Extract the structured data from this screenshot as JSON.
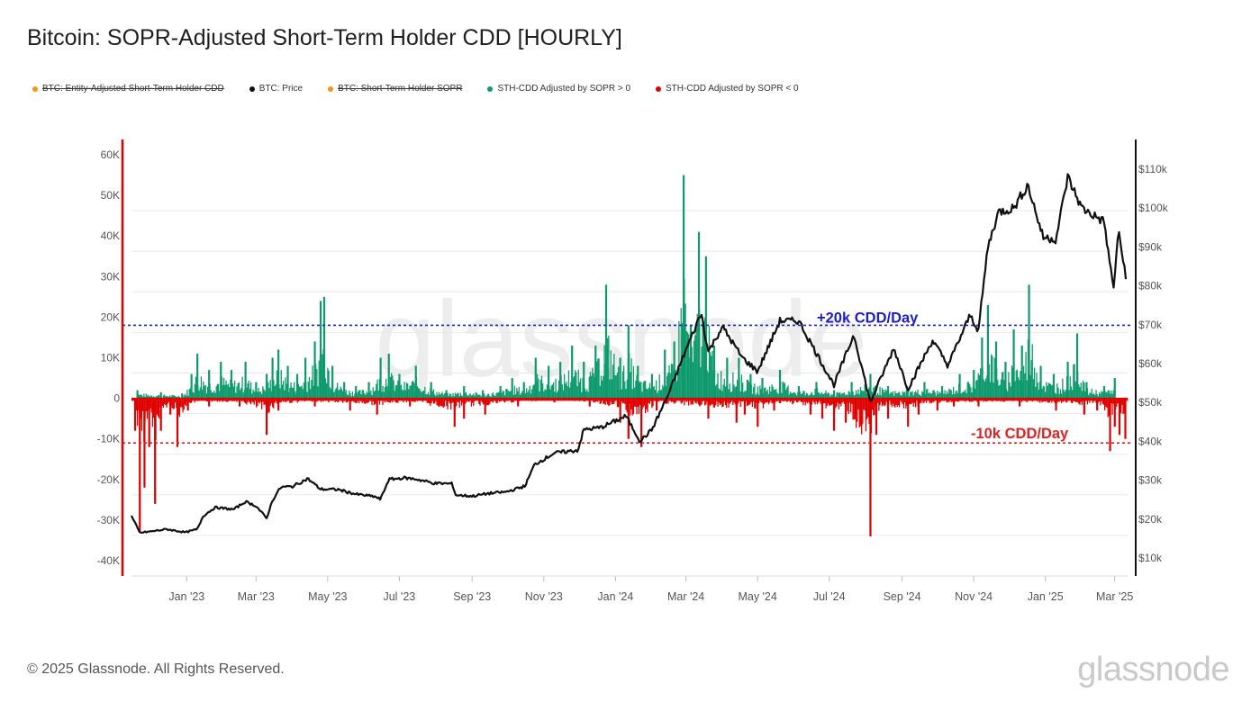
{
  "title": "Bitcoin: SOPR-Adjusted Short-Term Holder CDD [HOURLY]",
  "legend": [
    {
      "label": "BTC: Entity-Adjusted Short-Term Holder CDD",
      "color": "#f7931a",
      "struck": true
    },
    {
      "label": "BTC: Price",
      "color": "#111111",
      "struck": false
    },
    {
      "label": "BTC: Short-Term Holder SOPR",
      "color": "#f7931a",
      "struck": true
    },
    {
      "label": "STH-CDD Adjusted by SOPR > 0",
      "color": "#0e9a6c",
      "struck": false
    },
    {
      "label": "STH-CDD Adjusted by SOPR < 0",
      "color": "#e00000",
      "struck": false
    }
  ],
  "footer": "© 2025 Glassnode. All Rights Reserved.",
  "brand": "glassnode",
  "watermark": "glassnode",
  "chart_data": {
    "type": "bar",
    "x_range": [
      "2022-11-15",
      "2025-03-12"
    ],
    "x_ticks": [
      "Jan '23",
      "Mar '23",
      "May '23",
      "Jul '23",
      "Sep '23",
      "Nov '23",
      "Jan '24",
      "Mar '24",
      "May '24",
      "Jul '24",
      "Sep '24",
      "Nov '24",
      "Jan '25",
      "Mar '25"
    ],
    "y_left": {
      "ticks": [
        "60K",
        "50K",
        "40K",
        "30K",
        "20K",
        "10K",
        "0",
        "-10K",
        "-20K",
        "-30K",
        "-40K"
      ],
      "range": [
        -40000,
        60000
      ]
    },
    "y_right": {
      "ticks": [
        "$110k",
        "$100k",
        "$90k",
        "$80k",
        "$70k",
        "$60k",
        "$50k",
        "$40k",
        "$30k",
        "$20k",
        "$10k"
      ],
      "range": [
        10000,
        110000
      ]
    },
    "annotations": [
      {
        "text": "+20k CDD/Day",
        "y": 18000,
        "color": "#1f1fbf"
      },
      {
        "text": "-10k CDD/Day",
        "y": -11000,
        "color": "#e02020"
      }
    ],
    "series": [
      {
        "name": "STH-CDD Adjusted by SOPR > 0",
        "color": "#0e9a6c",
        "points": [
          [
            "2022-11-20",
            2000
          ],
          [
            "2022-12-10",
            1500
          ],
          [
            "2022-12-28",
            1200
          ],
          [
            "2023-01-05",
            6000
          ],
          [
            "2023-01-10",
            11000
          ],
          [
            "2023-01-20",
            7000
          ],
          [
            "2023-01-30",
            9000
          ],
          [
            "2023-02-08",
            7000
          ],
          [
            "2023-02-20",
            9000
          ],
          [
            "2023-03-01",
            4000
          ],
          [
            "2023-03-10",
            6000
          ],
          [
            "2023-03-15",
            10000
          ],
          [
            "2023-03-20",
            12000
          ],
          [
            "2023-03-28",
            8000
          ],
          [
            "2023-04-05",
            6000
          ],
          [
            "2023-04-12",
            10000
          ],
          [
            "2023-04-20",
            14000
          ],
          [
            "2023-04-25",
            24000
          ],
          [
            "2023-04-28",
            25000
          ],
          [
            "2023-05-05",
            8000
          ],
          [
            "2023-05-15",
            4000
          ],
          [
            "2023-05-25",
            3000
          ],
          [
            "2023-06-05",
            4000
          ],
          [
            "2023-06-15",
            10000
          ],
          [
            "2023-06-22",
            11000
          ],
          [
            "2023-07-01",
            6000
          ],
          [
            "2023-07-15",
            8000
          ],
          [
            "2023-07-28",
            4000
          ],
          [
            "2023-08-10",
            2000
          ],
          [
            "2023-08-25",
            3000
          ],
          [
            "2023-09-10",
            2000
          ],
          [
            "2023-09-25",
            3000
          ],
          [
            "2023-10-05",
            5000
          ],
          [
            "2023-10-15",
            4000
          ],
          [
            "2023-10-25",
            10000
          ],
          [
            "2023-11-05",
            8000
          ],
          [
            "2023-11-15",
            9000
          ],
          [
            "2023-11-25",
            13000
          ],
          [
            "2023-12-05",
            9000
          ],
          [
            "2023-12-15",
            13000
          ],
          [
            "2023-12-24",
            28000
          ],
          [
            "2024-01-05",
            10000
          ],
          [
            "2024-01-12",
            18000
          ],
          [
            "2024-01-20",
            8000
          ],
          [
            "2024-02-01",
            6000
          ],
          [
            "2024-02-12",
            12000
          ],
          [
            "2024-02-20",
            14000
          ],
          [
            "2024-02-28",
            55000
          ],
          [
            "2024-03-05",
            18000
          ],
          [
            "2024-03-12",
            41000
          ],
          [
            "2024-03-18",
            35000
          ],
          [
            "2024-03-25",
            13000
          ],
          [
            "2024-04-05",
            10000
          ],
          [
            "2024-04-15",
            10000
          ],
          [
            "2024-04-25",
            6000
          ],
          [
            "2024-05-05",
            5000
          ],
          [
            "2024-05-20",
            7000
          ],
          [
            "2024-06-05",
            3000
          ],
          [
            "2024-06-20",
            4000
          ],
          [
            "2024-07-05",
            2000
          ],
          [
            "2024-07-20",
            4000
          ],
          [
            "2024-08-05",
            6000
          ],
          [
            "2024-08-20",
            3000
          ],
          [
            "2024-09-05",
            3000
          ],
          [
            "2024-09-20",
            4000
          ],
          [
            "2024-10-05",
            3000
          ],
          [
            "2024-10-20",
            6000
          ],
          [
            "2024-11-01",
            7000
          ],
          [
            "2024-11-08",
            15000
          ],
          [
            "2024-11-13",
            23000
          ],
          [
            "2024-11-20",
            14000
          ],
          [
            "2024-11-28",
            9000
          ],
          [
            "2024-12-05",
            17000
          ],
          [
            "2024-12-12",
            13000
          ],
          [
            "2024-12-18",
            28000
          ],
          [
            "2024-12-28",
            8000
          ],
          [
            "2025-01-08",
            6000
          ],
          [
            "2025-01-20",
            9000
          ],
          [
            "2025-01-28",
            16000
          ],
          [
            "2025-02-05",
            4000
          ],
          [
            "2025-02-20",
            3000
          ],
          [
            "2025-03-01",
            5000
          ]
        ]
      },
      {
        "name": "STH-CDD Adjusted by SOPR < 0",
        "color": "#e00000",
        "points": [
          [
            "2022-11-18",
            -8000
          ],
          [
            "2022-11-22",
            -33000
          ],
          [
            "2022-11-26",
            -22000
          ],
          [
            "2022-11-30",
            -12000
          ],
          [
            "2022-12-05",
            -26000
          ],
          [
            "2022-12-10",
            -8000
          ],
          [
            "2022-12-18",
            -4000
          ],
          [
            "2022-12-24",
            -12000
          ],
          [
            "2023-01-02",
            -3000
          ],
          [
            "2023-01-20",
            -2000
          ],
          [
            "2023-02-15",
            -2000
          ],
          [
            "2023-03-10",
            -9000
          ],
          [
            "2023-03-20",
            -3000
          ],
          [
            "2023-04-20",
            -2000
          ],
          [
            "2023-05-20",
            -3000
          ],
          [
            "2023-06-12",
            -4000
          ],
          [
            "2023-07-10",
            -2000
          ],
          [
            "2023-08-17",
            -7000
          ],
          [
            "2023-08-25",
            -5000
          ],
          [
            "2023-09-12",
            -4000
          ],
          [
            "2023-10-10",
            -2000
          ],
          [
            "2023-11-10",
            -1000
          ],
          [
            "2023-12-10",
            -2000
          ],
          [
            "2024-01-05",
            -6000
          ],
          [
            "2024-01-12",
            -10000
          ],
          [
            "2024-01-23",
            -12000
          ],
          [
            "2024-02-05",
            -3000
          ],
          [
            "2024-03-20",
            -5000
          ],
          [
            "2024-04-13",
            -6000
          ],
          [
            "2024-04-20",
            -4000
          ],
          [
            "2024-05-01",
            -7000
          ],
          [
            "2024-05-15",
            -3000
          ],
          [
            "2024-06-15",
            -4000
          ],
          [
            "2024-06-25",
            -5000
          ],
          [
            "2024-07-05",
            -8000
          ],
          [
            "2024-07-15",
            -6000
          ],
          [
            "2024-08-05",
            -34000
          ],
          [
            "2024-08-10",
            -9000
          ],
          [
            "2024-08-20",
            -5000
          ],
          [
            "2024-09-06",
            -7000
          ],
          [
            "2024-09-15",
            -4000
          ],
          [
            "2024-10-01",
            -3000
          ],
          [
            "2024-10-15",
            -2000
          ],
          [
            "2024-11-05",
            -2000
          ],
          [
            "2024-12-10",
            -2000
          ],
          [
            "2025-01-10",
            -3000
          ],
          [
            "2025-02-03",
            -4000
          ],
          [
            "2025-02-14",
            -3000
          ],
          [
            "2025-02-25",
            -13000
          ],
          [
            "2025-03-01",
            -7000
          ],
          [
            "2025-03-05",
            -9000
          ],
          [
            "2025-03-10",
            -10000
          ]
        ]
      },
      {
        "name": "BTC: Price",
        "color": "#111111",
        "type": "line",
        "points": [
          [
            "2022-11-15",
            20800
          ],
          [
            "2022-11-22",
            16500
          ],
          [
            "2022-12-01",
            16800
          ],
          [
            "2022-12-15",
            17400
          ],
          [
            "2022-12-31",
            16600
          ],
          [
            "2023-01-10",
            17400
          ],
          [
            "2023-01-15",
            20800
          ],
          [
            "2023-01-25",
            23000
          ],
          [
            "2023-02-10",
            22500
          ],
          [
            "2023-02-20",
            24500
          ],
          [
            "2023-03-01",
            23400
          ],
          [
            "2023-03-10",
            20200
          ],
          [
            "2023-03-15",
            24800
          ],
          [
            "2023-03-22",
            28200
          ],
          [
            "2023-04-01",
            28400
          ],
          [
            "2023-04-14",
            30400
          ],
          [
            "2023-04-25",
            27700
          ],
          [
            "2023-05-10",
            27600
          ],
          [
            "2023-05-25",
            26400
          ],
          [
            "2023-06-10",
            25800
          ],
          [
            "2023-06-15",
            25100
          ],
          [
            "2023-06-22",
            30200
          ],
          [
            "2023-07-05",
            30600
          ],
          [
            "2023-07-15",
            30300
          ],
          [
            "2023-07-31",
            29200
          ],
          [
            "2023-08-15",
            29100
          ],
          [
            "2023-08-18",
            26200
          ],
          [
            "2023-09-01",
            25900
          ],
          [
            "2023-09-15",
            26600
          ],
          [
            "2023-09-30",
            27000
          ],
          [
            "2023-10-16",
            28500
          ],
          [
            "2023-10-24",
            34000
          ],
          [
            "2023-11-10",
            37000
          ],
          [
            "2023-11-30",
            37700
          ],
          [
            "2023-12-05",
            43000
          ],
          [
            "2023-12-20",
            43600
          ],
          [
            "2024-01-10",
            46500
          ],
          [
            "2024-01-22",
            40000
          ],
          [
            "2024-02-01",
            43000
          ],
          [
            "2024-02-15",
            52000
          ],
          [
            "2024-02-28",
            62000
          ],
          [
            "2024-03-14",
            73000
          ],
          [
            "2024-03-20",
            63000
          ],
          [
            "2024-04-01",
            69500
          ],
          [
            "2024-04-18",
            61500
          ],
          [
            "2024-05-01",
            58000
          ],
          [
            "2024-05-20",
            71000
          ],
          [
            "2024-06-05",
            71000
          ],
          [
            "2024-06-24",
            60500
          ],
          [
            "2024-07-05",
            54500
          ],
          [
            "2024-07-22",
            67500
          ],
          [
            "2024-08-05",
            50000
          ],
          [
            "2024-08-25",
            64000
          ],
          [
            "2024-09-06",
            53500
          ],
          [
            "2024-09-27",
            66000
          ],
          [
            "2024-10-10",
            59500
          ],
          [
            "2024-10-29",
            72500
          ],
          [
            "2024-11-05",
            68500
          ],
          [
            "2024-11-13",
            90000
          ],
          [
            "2024-11-22",
            99000
          ],
          [
            "2024-12-05",
            100000
          ],
          [
            "2024-12-17",
            106000
          ],
          [
            "2024-12-30",
            92500
          ],
          [
            "2025-01-10",
            92000
          ],
          [
            "2025-01-20",
            108000
          ],
          [
            "2025-02-01",
            100000
          ],
          [
            "2025-02-20",
            96500
          ],
          [
            "2025-02-28",
            79000
          ],
          [
            "2025-03-04",
            94000
          ],
          [
            "2025-03-12",
            80000
          ]
        ]
      }
    ]
  }
}
